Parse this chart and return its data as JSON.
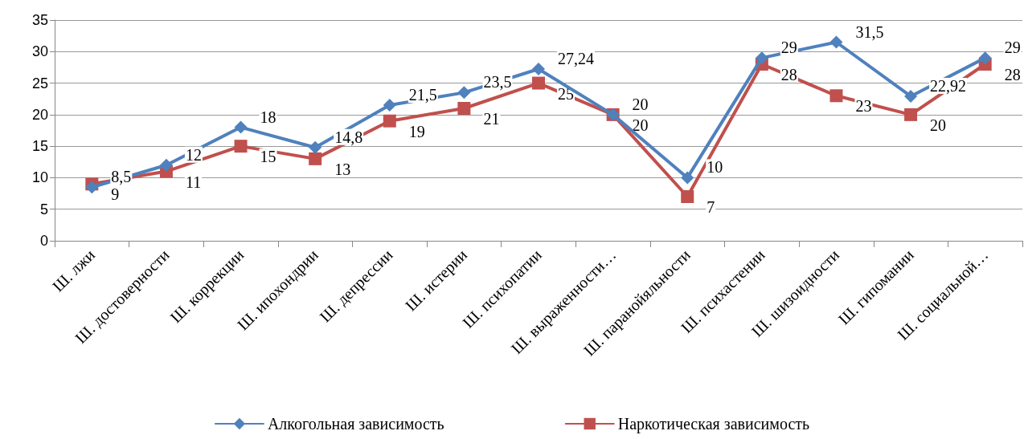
{
  "chart_data": {
    "type": "line",
    "categories": [
      "Ш. лжи",
      "Ш. достоверности",
      "Ш. коррекции",
      "Ш. ипохондрии",
      "Ш. депрессии",
      "Ш. истерии",
      "Ш. психопатии",
      "Ш. выраженности…",
      "Ш. паранойяльности",
      "Ш. психастении",
      "Ш. шизоидности",
      "Ш. гипомании",
      "Ш. социальной…"
    ],
    "series": [
      {
        "name": "Алкогольная зависимость",
        "color": "#4f81bd",
        "marker": "diamond",
        "values": [
          8.5,
          12,
          18,
          14.8,
          21.5,
          23.5,
          27.24,
          20,
          10,
          29,
          31.5,
          22.92,
          29
        ],
        "value_labels": [
          "8,5",
          "12",
          "18",
          "14,8",
          "21,5",
          "23,5",
          "27,24",
          "20",
          "10",
          "29",
          "31,5",
          "22,92",
          "29"
        ]
      },
      {
        "name": "Наркотическая зависимость",
        "color": "#c0504d",
        "marker": "square",
        "values": [
          9,
          11,
          15,
          13,
          19,
          21,
          25,
          20,
          7,
          28,
          23,
          20,
          28
        ],
        "value_labels": [
          "9",
          "11",
          "15",
          "13",
          "19",
          "21",
          "25",
          "20",
          "7",
          "28",
          "23",
          "20",
          "28"
        ]
      }
    ],
    "ylim": [
      0,
      35
    ],
    "yticks": [
      0,
      5,
      10,
      15,
      20,
      25,
      30,
      35
    ],
    "grid": "y",
    "legend": "bottom",
    "line_style": "solid"
  }
}
